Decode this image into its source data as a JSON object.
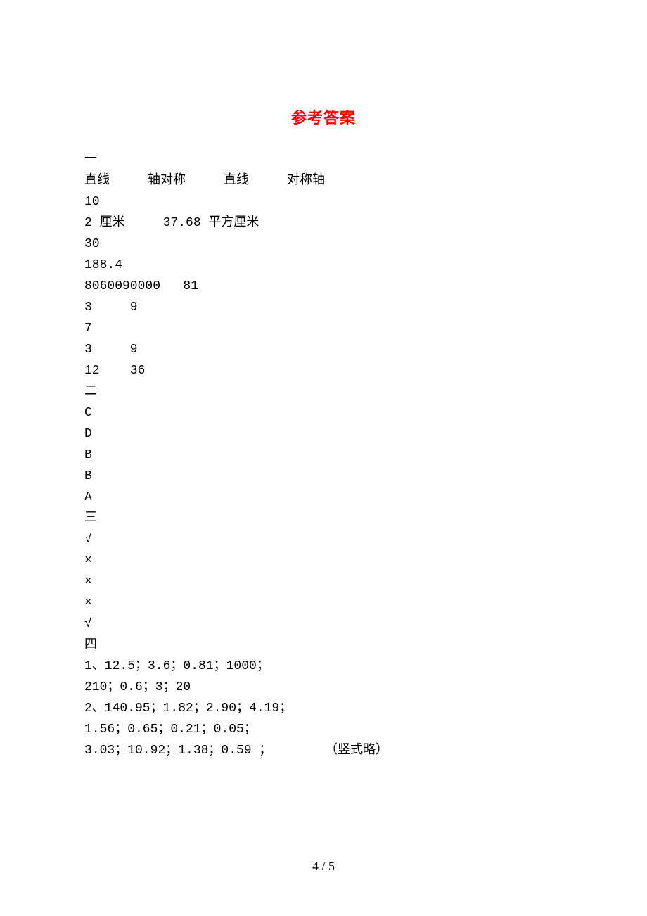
{
  "title": "参考答案",
  "colors": {
    "title_color": "#ff0000",
    "text_color": "#000000",
    "background": "#ffffff"
  },
  "typography": {
    "title_fontsize": 22,
    "body_fontsize": 18,
    "line_height": 30,
    "font_family": "SimSun"
  },
  "lines": [
    "一",
    "直线     轴对称     直线     对称轴",
    "10",
    "2 厘米     37.68 平方厘米",
    "30",
    "188.4",
    "8060090000   81",
    "3     9",
    "7",
    "3     9",
    "12    36",
    "二",
    "C",
    "D",
    "B",
    "B",
    "A",
    "三",
    "√",
    "×",
    "×",
    "×",
    "√",
    "四",
    "1、12.5；3.6；0.81；1000；",
    "210；0.6；3；20",
    "2、140.95；1.82；2.90；4.19；",
    "1.56；0.65；0.21；0.05；",
    "3.03；10.92；1.38；0.59 ；       （竖式略）"
  ],
  "footer": "4 / 5"
}
